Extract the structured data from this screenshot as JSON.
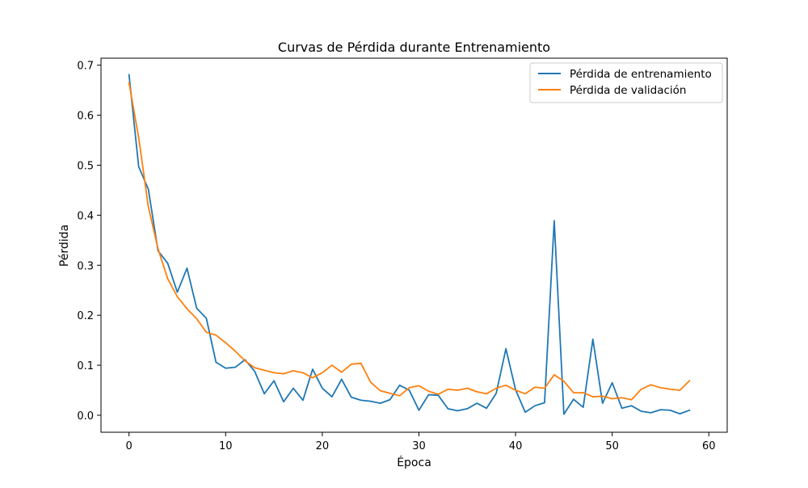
{
  "chart_data": {
    "type": "line",
    "title": "Curvas de Pérdida durante Entrenamiento",
    "xlabel": "Época",
    "ylabel": "Pérdida",
    "xlim": [
      -2.9,
      61.9
    ],
    "ylim": [
      -0.034,
      0.714
    ],
    "xticks": [
      0,
      10,
      20,
      30,
      40,
      50,
      60
    ],
    "yticks": [
      0.0,
      0.1,
      0.2,
      0.3,
      0.4,
      0.5,
      0.6,
      0.7
    ],
    "xtick_labels": [
      "0",
      "10",
      "20",
      "30",
      "40",
      "50",
      "60"
    ],
    "ytick_labels": [
      "0.0",
      "0.1",
      "0.2",
      "0.3",
      "0.4",
      "0.5",
      "0.6",
      "0.7"
    ],
    "grid": false,
    "legend_position": "top-right",
    "x": [
      0,
      1,
      2,
      3,
      4,
      5,
      6,
      7,
      8,
      9,
      10,
      11,
      12,
      13,
      14,
      15,
      16,
      17,
      18,
      19,
      20,
      21,
      22,
      23,
      24,
      25,
      26,
      27,
      28,
      29,
      30,
      31,
      32,
      33,
      34,
      35,
      36,
      37,
      38,
      39,
      40,
      41,
      42,
      43,
      44,
      45,
      46,
      47,
      48,
      49,
      50,
      51,
      52,
      53,
      54,
      55,
      56,
      57,
      58
    ],
    "series": [
      {
        "name": "Pérdida de entrenamiento",
        "color": "#1f77b4",
        "values": [
          0.681,
          0.497,
          0.452,
          0.329,
          0.304,
          0.246,
          0.294,
          0.214,
          0.194,
          0.106,
          0.094,
          0.096,
          0.111,
          0.088,
          0.043,
          0.069,
          0.027,
          0.054,
          0.03,
          0.092,
          0.054,
          0.037,
          0.072,
          0.036,
          0.03,
          0.028,
          0.024,
          0.031,
          0.06,
          0.05,
          0.01,
          0.041,
          0.04,
          0.013,
          0.009,
          0.013,
          0.024,
          0.014,
          0.044,
          0.133,
          0.051,
          0.006,
          0.019,
          0.025,
          0.389,
          0.002,
          0.032,
          0.016,
          0.152,
          0.024,
          0.065,
          0.014,
          0.019,
          0.008,
          0.005,
          0.011,
          0.01,
          0.003,
          0.01
        ]
      },
      {
        "name": "Pérdida de validación",
        "color": "#ff7f0e",
        "values": [
          0.665,
          0.555,
          0.417,
          0.333,
          0.273,
          0.237,
          0.213,
          0.193,
          0.166,
          0.16,
          0.145,
          0.128,
          0.109,
          0.095,
          0.09,
          0.085,
          0.083,
          0.089,
          0.085,
          0.075,
          0.085,
          0.1,
          0.086,
          0.102,
          0.104,
          0.066,
          0.049,
          0.044,
          0.039,
          0.055,
          0.059,
          0.048,
          0.042,
          0.052,
          0.05,
          0.054,
          0.047,
          0.043,
          0.054,
          0.06,
          0.05,
          0.043,
          0.056,
          0.054,
          0.081,
          0.068,
          0.045,
          0.045,
          0.037,
          0.038,
          0.033,
          0.035,
          0.031,
          0.052,
          0.061,
          0.055,
          0.052,
          0.05,
          0.069
        ]
      }
    ]
  }
}
